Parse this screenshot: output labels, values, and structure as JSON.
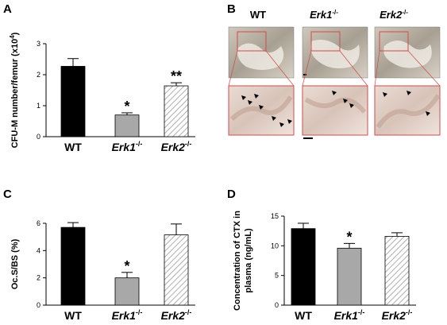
{
  "panel_labels": {
    "A": "A",
    "B": "B",
    "C": "C",
    "D": "D"
  },
  "micrograph_headers": [
    "WT",
    "Erk1",
    "Erk2"
  ],
  "genotype_superscript": "-/-",
  "colors": {
    "wt": "#000000",
    "erk1": "#a8a8a8",
    "erk2_hatch": "#9a9a9a",
    "crop_box": "#d24b4b",
    "arrow": "#000000"
  },
  "icons": [
    "scale-bar",
    "arrowhead-marker"
  ],
  "chart_data": [
    {
      "panel": "A",
      "type": "bar",
      "ylabel_main": "CFU-M number/femur (x10",
      "ylabel_sup": "4",
      "ylabel_end": ")",
      "ylim": [
        0,
        3
      ],
      "yticks": [
        "0",
        "1",
        "2",
        "3"
      ],
      "categories": [
        "WT",
        "Erk1",
        "Erk2"
      ],
      "category_italic": [
        false,
        true,
        true
      ],
      "category_superscript": [
        "",
        "-/-",
        "-/-"
      ],
      "values": [
        2.27,
        0.7,
        1.64
      ],
      "errors": [
        0.25,
        0.07,
        0.1
      ],
      "significance": [
        "",
        "*",
        "**"
      ],
      "fills": [
        "solid-black",
        "solid-gray",
        "hatched"
      ]
    },
    {
      "panel": "C",
      "type": "bar",
      "ylabel": "Oc.S/BS (%)",
      "ylim": [
        0,
        6
      ],
      "yticks": [
        "0",
        "2",
        "4",
        "6"
      ],
      "categories": [
        "WT",
        "Erk1",
        "Erk2"
      ],
      "category_italic": [
        false,
        true,
        true
      ],
      "category_superscript": [
        "",
        "-/-",
        "-/-"
      ],
      "values": [
        5.7,
        2.0,
        5.15
      ],
      "errors": [
        0.35,
        0.4,
        0.8
      ],
      "significance": [
        "",
        "*",
        ""
      ],
      "fills": [
        "solid-black",
        "solid-gray",
        "hatched"
      ]
    },
    {
      "panel": "D",
      "type": "bar",
      "ylabel_line1": "Concentration of CTX in",
      "ylabel_line2": "plasma (ng/mL)",
      "ylim": [
        0,
        15
      ],
      "yticks": [
        "0",
        "5",
        "10",
        "15"
      ],
      "categories": [
        "WT",
        "Erk1",
        "Erk2"
      ],
      "category_italic": [
        false,
        true,
        true
      ],
      "category_superscript": [
        "",
        "-/-",
        "-/-"
      ],
      "values": [
        12.9,
        9.6,
        11.6
      ],
      "errors": [
        0.9,
        0.8,
        0.6
      ],
      "significance": [
        "",
        "*",
        ""
      ],
      "fills": [
        "solid-black",
        "solid-gray",
        "hatched"
      ]
    }
  ]
}
